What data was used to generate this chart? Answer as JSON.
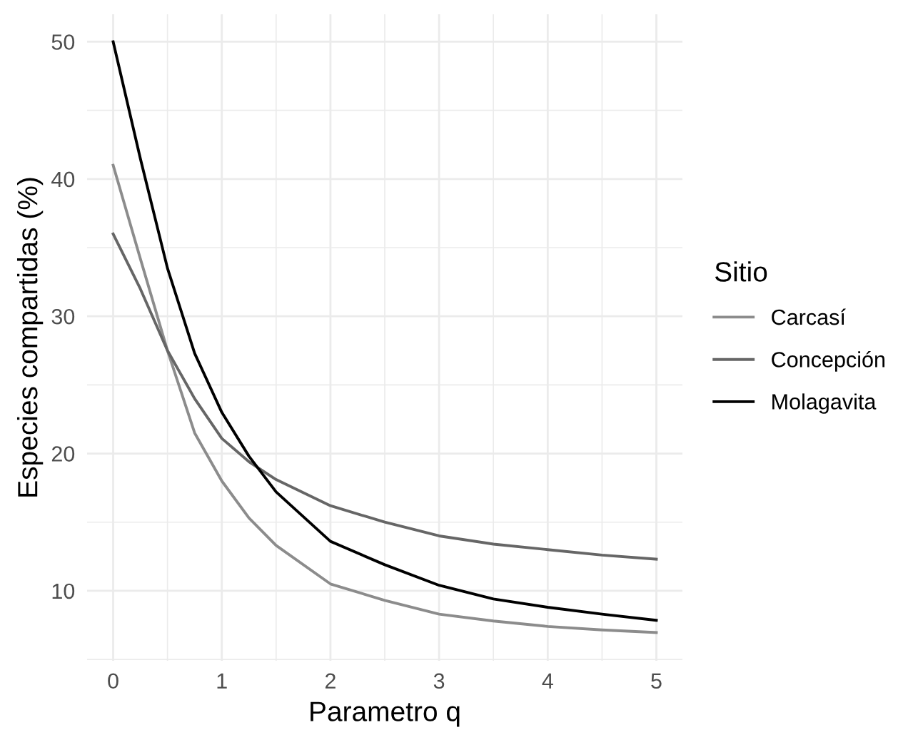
{
  "chart_data": {
    "type": "line",
    "xlabel": "Parametro q",
    "ylabel": "Especies compartidas (%)",
    "legend_title": "Sitio",
    "legend": "right",
    "grid": true,
    "x": [
      0,
      0.25,
      0.5,
      0.75,
      1,
      1.25,
      1.5,
      2,
      2.5,
      3,
      3.5,
      4,
      4.5,
      5
    ],
    "series": [
      {
        "name": "Carcasí",
        "color": "#8c8c8c",
        "values": [
          41,
          34.2,
          27.5,
          21.5,
          18.0,
          15.3,
          13.3,
          10.5,
          9.3,
          8.3,
          7.8,
          7.4,
          7.15,
          6.96
        ]
      },
      {
        "name": "Concepción",
        "color": "#666666",
        "values": [
          36,
          32.0,
          27.5,
          24.0,
          21.1,
          19.4,
          18.1,
          16.2,
          15.0,
          14.0,
          13.4,
          13.0,
          12.6,
          12.3
        ]
      },
      {
        "name": "Molagavita",
        "color": "#000000",
        "values": [
          50,
          41.5,
          33.5,
          27.3,
          23.0,
          19.8,
          17.2,
          13.6,
          11.9,
          10.4,
          9.4,
          8.8,
          8.3,
          7.85
        ]
      }
    ],
    "xlim": [
      -0.24,
      5.24
    ],
    "ylim": [
      4.9,
      52
    ],
    "xticks": [
      0,
      1,
      2,
      3,
      4,
      5
    ],
    "yticks": [
      10,
      20,
      30,
      40,
      50
    ]
  }
}
